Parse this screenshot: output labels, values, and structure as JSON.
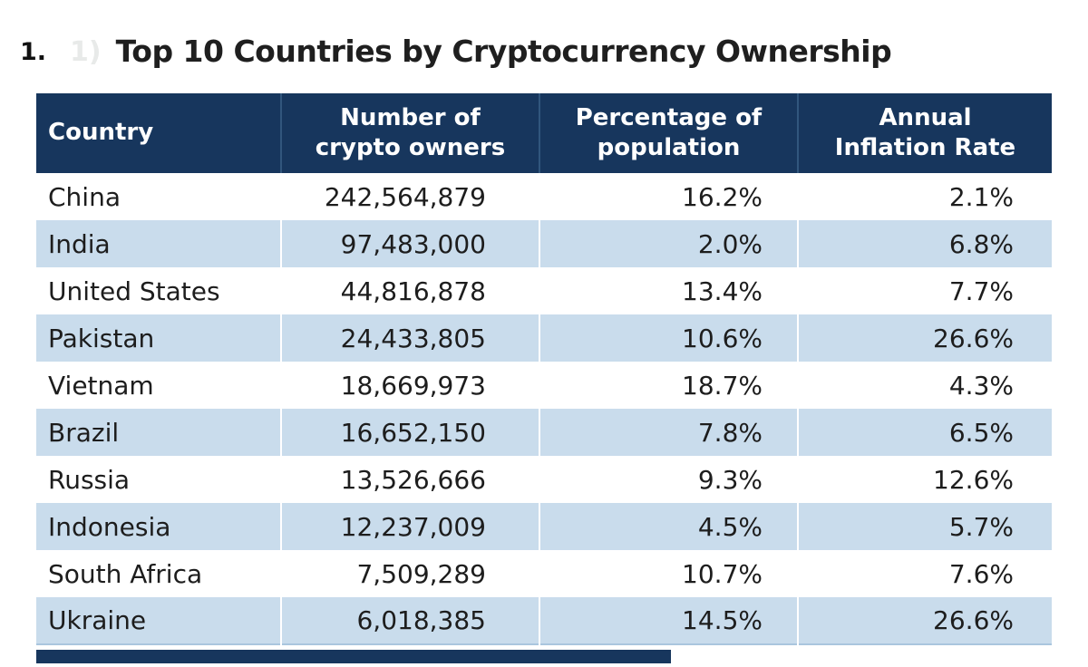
{
  "page": {
    "heading": {
      "number": "1.",
      "ghost_number": "1)",
      "title": "Top 10 Countries by Cryptocurrency Ownership"
    },
    "table": {
      "headers": [
        {
          "lines": [
            "Country"
          ]
        },
        {
          "lines": [
            "Number of",
            "crypto owners"
          ]
        },
        {
          "lines": [
            "Percentage of",
            "population"
          ]
        },
        {
          "lines": [
            "Annual",
            "Inflation Rate"
          ]
        }
      ],
      "rows": [
        [
          "China",
          "242,564,879",
          "16.2%",
          "2.1%"
        ],
        [
          "India",
          "97,483,000",
          "2.0%",
          "6.8%"
        ],
        [
          "United States",
          "44,816,878",
          "13.4%",
          "7.7%"
        ],
        [
          "Pakistan",
          "24,433,805",
          "10.6%",
          "26.6%"
        ],
        [
          "Vietnam",
          "18,669,973",
          "18.7%",
          "4.3%"
        ],
        [
          "Brazil",
          "16,652,150",
          "7.8%",
          "6.5%"
        ],
        [
          "Russia",
          "13,526,666",
          "9.3%",
          "12.6%"
        ],
        [
          "Indonesia",
          "12,237,009",
          "4.5%",
          "5.7%"
        ],
        [
          "South Africa",
          "7,509,289",
          "10.7%",
          "7.6%"
        ],
        [
          "Ukraine",
          "6,018,385",
          "14.5%",
          "26.6%"
        ]
      ]
    },
    "colors": {
      "header_bg": "#17365d",
      "header_text": "#ffffff",
      "row_alt_bg": "#c9dcec",
      "body_text": "#1d1d1d"
    }
  }
}
